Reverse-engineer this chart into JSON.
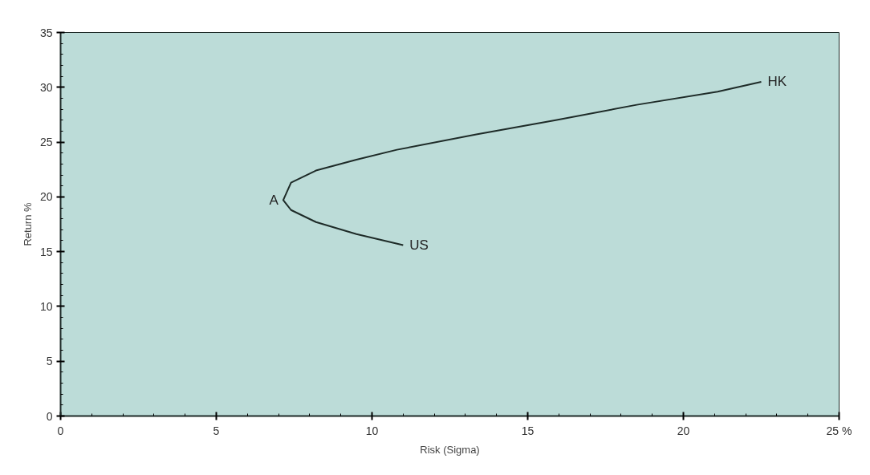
{
  "chart_data": {
    "type": "line",
    "xlabel": "Risk (Sigma)",
    "ylabel": "Return %",
    "x": [
      11.0,
      9.5,
      8.2,
      7.4,
      7.15,
      7.4,
      8.2,
      9.5,
      10.8,
      13.35,
      15.9,
      18.5,
      21.1,
      22.5
    ],
    "series": [
      {
        "color": "#1e2b28",
        "values": [
          15.6,
          16.6,
          17.7,
          18.8,
          19.7,
          21.3,
          22.4,
          23.4,
          24.3,
          25.7,
          27.0,
          28.4,
          29.6,
          30.5
        ]
      }
    ],
    "xlim": [
      0,
      25
    ],
    "ylim": [
      0,
      35
    ],
    "xticks": [
      0,
      5,
      10,
      15,
      20,
      {
        "value": 25,
        "label": "25 %"
      }
    ],
    "yticks": [
      0,
      5,
      10,
      15,
      20,
      25,
      30,
      35
    ],
    "grid": false,
    "marker": "none",
    "line_style": "solid",
    "annotations": [
      {
        "text": "A",
        "x": 7.15,
        "y": 19.7
      },
      {
        "text": "US",
        "x": 11.0,
        "y": 15.6
      },
      {
        "text": "HK",
        "x": 22.5,
        "y": 30.5
      }
    ]
  }
}
